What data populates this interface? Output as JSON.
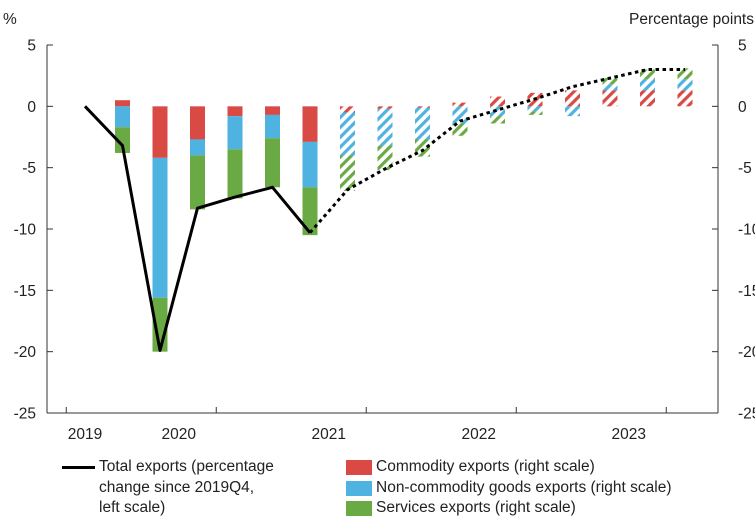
{
  "chart_data": {
    "type": "bar",
    "left_axis_unit": "%",
    "right_axis_unit": "Percentage points",
    "ylim": [
      -25,
      5
    ],
    "yticks": [
      5,
      0,
      -5,
      -10,
      -15,
      -20,
      -25
    ],
    "year_labels": [
      "2019",
      "2020",
      "2021",
      "2022",
      "2023"
    ],
    "quarters": [
      "2019Q4",
      "2020Q1",
      "2020Q2",
      "2020Q3",
      "2020Q4",
      "2021Q1",
      "2021Q2",
      "2021Q3",
      "2021Q4",
      "2022Q1",
      "2022Q2",
      "2022Q3",
      "2022Q4",
      "2023Q1",
      "2023Q2",
      "2023Q3",
      "2023Q4"
    ],
    "forecast_start": "2021Q3",
    "series": [
      {
        "name": "Commodity exports (right scale)",
        "color": "#d94a45",
        "values": [
          0,
          0.5,
          -4.2,
          -2.7,
          -0.8,
          -0.7,
          -2.9,
          -0.5,
          -0.2,
          -0.1,
          0.3,
          0.8,
          1.1,
          1.3,
          1.3,
          1.3,
          1.3
        ]
      },
      {
        "name": "Non-commodity goods exports (right scale)",
        "color": "#4eb3e0",
        "values": [
          0,
          -1.7,
          -11.4,
          -1.3,
          -2.7,
          -1.9,
          -3.7,
          -3.5,
          -3.0,
          -2.6,
          -1.4,
          -0.8,
          -0.4,
          -0.8,
          0.5,
          0.9,
          0.9
        ]
      },
      {
        "name": "Services exports (right scale)",
        "color": "#6aaa45",
        "values": [
          0,
          -2.1,
          -4.4,
          -4.4,
          -4.0,
          -4.0,
          -3.9,
          -2.9,
          -2.0,
          -1.4,
          -1.0,
          -0.6,
          -0.3,
          0.0,
          0.5,
          0.8,
          0.9
        ]
      }
    ],
    "line": {
      "name": "Total exports (percentage change since 2019Q4, left scale)",
      "color": "#000000",
      "values": [
        0,
        -3.2,
        -19.9,
        -8.3,
        -7.4,
        -6.6,
        -10.3,
        -6.8,
        -5.1,
        -3.6,
        -1.2,
        -0.3,
        0.6,
        1.6,
        2.3,
        3.0,
        3.0
      ]
    }
  },
  "legend": {
    "total": "Total exports (percentage\nchange since 2019Q4,\nleft scale)",
    "commodity": "Commodity exports (right scale)",
    "noncommodity": "Non-commodity goods exports (right scale)",
    "services": "Services exports (right scale)"
  }
}
